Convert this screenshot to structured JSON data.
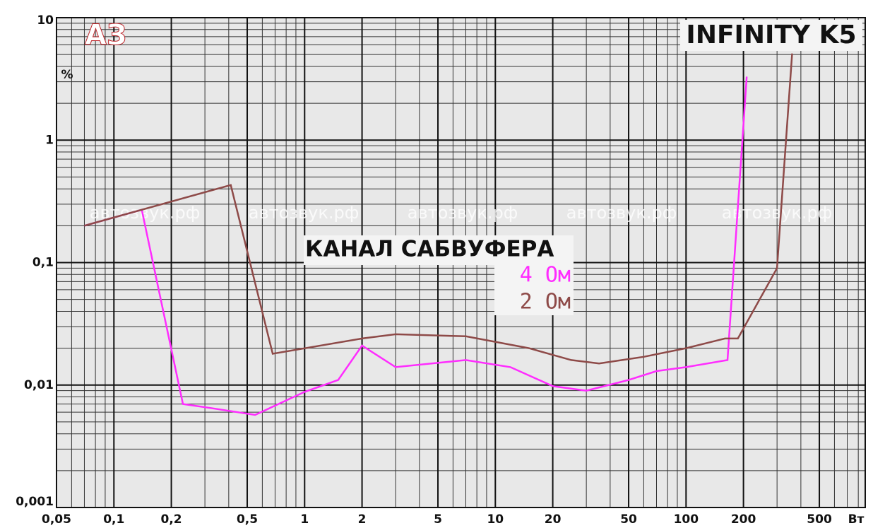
{
  "chart_data": {
    "type": "line",
    "title": "INFINITY K5",
    "subtitle": "КАНАЛ САБВУФЕРА",
    "logo": "АЗ",
    "watermark": "автозвук.рф",
    "y_label": "%",
    "x_label": "Вт",
    "xscale": "log",
    "yscale": "log",
    "grid": true,
    "xlim": [
      0.05,
      870
    ],
    "ylim": [
      0.001,
      10
    ],
    "xticks": [
      {
        "value": 0.05,
        "label": "0,05"
      },
      {
        "value": 0.1,
        "label": "0,1"
      },
      {
        "value": 0.2,
        "label": "0,2"
      },
      {
        "value": 0.5,
        "label": "0,5"
      },
      1,
      2,
      5,
      10,
      20,
      50,
      100,
      200,
      500
    ],
    "yticks": [
      {
        "value": 0.001,
        "label": "0,001"
      },
      {
        "value": 0.01,
        "label": "0,01"
      },
      {
        "value": 0.1,
        "label": "0,1"
      },
      1,
      10
    ],
    "series": [
      {
        "name": "4 Ом",
        "color": "#ff2cff",
        "x": [
          0.07,
          0.14,
          0.23,
          0.32,
          0.55,
          1,
          1.5,
          2,
          3,
          7,
          12,
          20,
          30,
          50,
          70,
          100,
          165,
          208
        ],
        "values": [
          0.2,
          0.27,
          0.007,
          0.0065,
          0.0057,
          0.0088,
          0.011,
          0.021,
          0.014,
          0.016,
          0.014,
          0.0098,
          0.009,
          0.011,
          0.013,
          0.014,
          0.016,
          3.3
        ]
      },
      {
        "name": "2 Ом",
        "color": "#8e4a48",
        "x": [
          0.07,
          0.41,
          0.68,
          2,
          3,
          7,
          15,
          25,
          35,
          60,
          100,
          160,
          187,
          300,
          360
        ],
        "values": [
          0.2,
          0.43,
          0.018,
          0.024,
          0.026,
          0.025,
          0.02,
          0.016,
          0.015,
          0.017,
          0.02,
          0.024,
          0.024,
          0.09,
          5.1
        ]
      }
    ]
  }
}
